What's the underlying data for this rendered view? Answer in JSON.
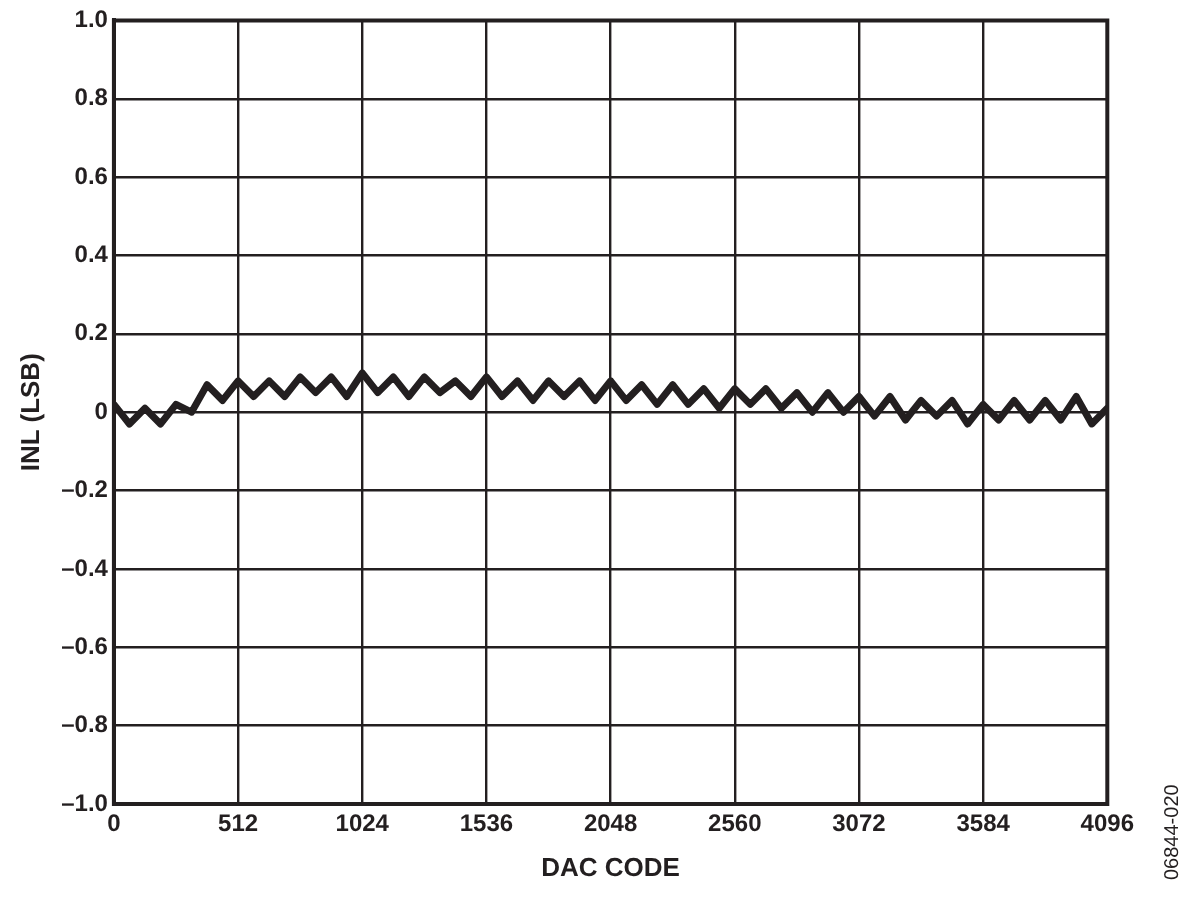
{
  "chart_data": {
    "type": "line",
    "xlabel": "DAC CODE",
    "ylabel": "INL (LSB)",
    "annotations": [
      "06844-020"
    ],
    "xlim": [
      0,
      4096
    ],
    "xticks": [
      0,
      512,
      1024,
      1536,
      2048,
      2560,
      3072,
      3584,
      4096
    ],
    "ylim": [
      -1,
      1
    ],
    "yticks": [
      {
        "value": -1,
        "label": "–1.0"
      },
      {
        "value": -0.8,
        "label": "–0.8"
      },
      {
        "value": -0.6,
        "label": "–0.6"
      },
      {
        "value": -0.4,
        "label": "–0.4"
      },
      {
        "value": -0.2,
        "label": "–0.2"
      },
      0,
      0.2,
      0.4,
      0.6,
      0.8,
      {
        "value": 1,
        "label": "1.0"
      }
    ],
    "grid": true,
    "legend": false,
    "marker": "none",
    "line_style": "solid",
    "series": [
      {
        "color": "#231f20",
        "x": [
          0,
          64,
          128,
          192,
          256,
          320,
          384,
          448,
          512,
          576,
          640,
          704,
          768,
          832,
          896,
          960,
          1024,
          1088,
          1152,
          1216,
          1280,
          1344,
          1408,
          1472,
          1536,
          1600,
          1664,
          1728,
          1792,
          1856,
          1920,
          1984,
          2048,
          2112,
          2176,
          2240,
          2304,
          2368,
          2432,
          2496,
          2560,
          2624,
          2688,
          2752,
          2816,
          2880,
          2944,
          3008,
          3072,
          3136,
          3200,
          3264,
          3328,
          3392,
          3456,
          3520,
          3584,
          3648,
          3712,
          3776,
          3840,
          3904,
          3968,
          4032,
          4096
        ],
        "values": [
          0.02,
          -0.03,
          0.01,
          -0.03,
          0.02,
          0.0,
          0.07,
          0.03,
          0.08,
          0.04,
          0.08,
          0.04,
          0.09,
          0.05,
          0.09,
          0.04,
          0.1,
          0.05,
          0.09,
          0.04,
          0.09,
          0.05,
          0.08,
          0.04,
          0.09,
          0.04,
          0.08,
          0.03,
          0.08,
          0.04,
          0.08,
          0.03,
          0.08,
          0.03,
          0.07,
          0.02,
          0.07,
          0.02,
          0.06,
          0.01,
          0.06,
          0.02,
          0.06,
          0.01,
          0.05,
          0.0,
          0.05,
          0.0,
          0.04,
          -0.01,
          0.04,
          -0.02,
          0.03,
          -0.01,
          0.03,
          -0.03,
          0.02,
          -0.02,
          0.03,
          -0.02,
          0.03,
          -0.02,
          0.04,
          -0.03,
          0.01
        ]
      }
    ]
  }
}
